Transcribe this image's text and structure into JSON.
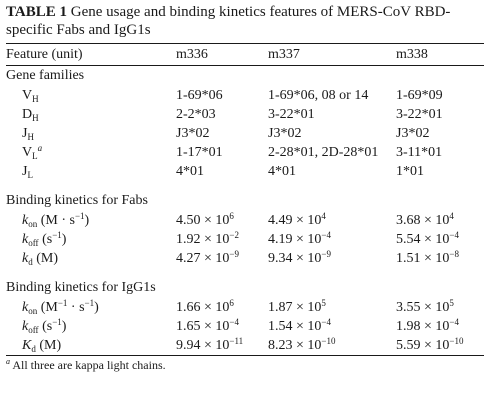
{
  "caption": {
    "label": "TABLE 1",
    "text": "Gene usage and binding kinetics features of MERS-CoV RBD-specific Fabs and IgG1s"
  },
  "header": {
    "feature": "Feature (unit)",
    "col1": "m336",
    "col2": "m337",
    "col3": "m338"
  },
  "gene_families": {
    "title": "Gene families",
    "rows": [
      {
        "main": "V",
        "sub": "H",
        "sup": "",
        "v1": "1-69*06",
        "v2": "1-69*06, 08 or 14",
        "v3": "1-69*09"
      },
      {
        "main": "D",
        "sub": "H",
        "sup": "",
        "v1": "2-2*03",
        "v2": "3-22*01",
        "v3": "3-22*01"
      },
      {
        "main": "J",
        "sub": "H",
        "sup": "",
        "v1": "J3*02",
        "v2": "J3*02",
        "v3": "J3*02"
      },
      {
        "main": "V",
        "sub": "L",
        "sup": "a",
        "v1": "1-17*01",
        "v2": "2-28*01, 2D-28*01",
        "v3": "3-11*01"
      },
      {
        "main": "J",
        "sub": "L",
        "sup": "",
        "v1": "4*01",
        "v2": "4*01",
        "v3": "1*01"
      }
    ]
  },
  "fabs": {
    "title": "Binding kinetics for Fabs",
    "kon": {
      "k": "k",
      "sub": "on",
      "unit_a": " (M · s",
      "unit_sup": "−1",
      "unit_b": ")",
      "v1": {
        "m": "4.50 × 10",
        "e": "6"
      },
      "v2": {
        "m": "4.49 × 10",
        "e": "4"
      },
      "v3": {
        "m": "3.68 × 10",
        "e": "4"
      }
    },
    "koff": {
      "k": "k",
      "sub": "off",
      "unit_a": " (s",
      "unit_sup": "−1",
      "unit_b": ")",
      "v1": {
        "m": "1.92 × 10",
        "e": "−2"
      },
      "v2": {
        "m": "4.19 × 10",
        "e": "−4"
      },
      "v3": {
        "m": "5.54 × 10",
        "e": "−4"
      }
    },
    "kd": {
      "k": "k",
      "sub": "d",
      "unit_a": " (M)",
      "v1": {
        "m": "4.27 × 10",
        "e": "−9"
      },
      "v2": {
        "m": "9.34 × 10",
        "e": "−9"
      },
      "v3": {
        "m": "1.51 × 10",
        "e": "−8"
      }
    }
  },
  "igg1s": {
    "title": "Binding kinetics for IgG1s",
    "kon": {
      "k": "k",
      "sub": "on",
      "unit_a": " (M",
      "unit_sup": "−1",
      "unit_mid": " · s",
      "unit_sup2": "−1",
      "unit_b": ")",
      "v1": {
        "m": "1.66 × 10",
        "e": "6"
      },
      "v2": {
        "m": "1.87 × 10",
        "e": "5"
      },
      "v3": {
        "m": "3.55 × 10",
        "e": "5"
      }
    },
    "koff": {
      "k": "k",
      "sub": "off",
      "unit_a": " (s",
      "unit_sup": "−1",
      "unit_b": ")",
      "v1": {
        "m": "1.65 × 10",
        "e": "−4"
      },
      "v2": {
        "m": "1.54 × 10",
        "e": "−4"
      },
      "v3": {
        "m": "1.98 × 10",
        "e": "−4"
      }
    },
    "kd": {
      "k": "K",
      "sub": "d",
      "unit_a": " (M)",
      "v1": {
        "m": "9.94 × 10",
        "e": "−11"
      },
      "v2": {
        "m": "8.23 × 10",
        "e": "−10"
      },
      "v3": {
        "m": "5.59 × 10",
        "e": "−10"
      }
    }
  },
  "footnote": {
    "mark": "a",
    "text": " All three are kappa light chains."
  }
}
